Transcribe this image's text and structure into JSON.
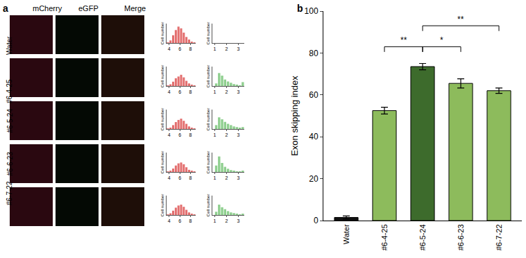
{
  "panel_a": {
    "label": "a",
    "columns": [
      "mCherry",
      "eGFP",
      "Merge"
    ],
    "rows": [
      "Water",
      "#6-4-25",
      "#6-5-24",
      "#6-6-23",
      "#6-7-22"
    ],
    "histograms": [
      {
        "row": "Water",
        "channel": "mCherry",
        "color": "#e36f6f",
        "ylabel": "Cell number",
        "bins": [
          3.5,
          4,
          4.5,
          5,
          5.5,
          6,
          6.5,
          7,
          7.5,
          8,
          8.5,
          9
        ],
        "counts": [
          1,
          6,
          18,
          30,
          38,
          34,
          24,
          14,
          8,
          3,
          1
        ],
        "xlim": [
          3.5,
          9
        ],
        "xticks": [
          4,
          6,
          8
        ],
        "ylim": [
          0,
          45
        ],
        "tick_labels": "x"
      },
      {
        "row": "Water",
        "channel": "eGFP",
        "color": "#8fcf8f",
        "ylabel": "Cell number",
        "bins": [
          1,
          1.25,
          1.5,
          1.75,
          2,
          2.25,
          2.5,
          2.75,
          3,
          3.25,
          3.5
        ],
        "counts": [
          0,
          0,
          0,
          0,
          0,
          0,
          0,
          0,
          0,
          0
        ],
        "xlim": [
          0.8,
          3.5
        ],
        "xticks": [
          1,
          2,
          3
        ],
        "ylim": [
          0,
          30
        ],
        "tick_labels": "x"
      },
      {
        "row": "#6-4-25",
        "channel": "mCherry",
        "color": "#e36f6f",
        "ylabel": "Cell number",
        "bins": [
          3.5,
          4,
          4.5,
          5,
          5.5,
          6,
          6.5,
          7,
          7.5,
          8,
          8.5,
          9
        ],
        "counts": [
          1,
          4,
          10,
          18,
          22,
          26,
          20,
          12,
          6,
          3,
          1
        ],
        "xlim": [
          3.5,
          9
        ],
        "xticks": [
          4,
          6,
          8
        ],
        "ylim": [
          0,
          45
        ],
        "tick_labels": "x"
      },
      {
        "row": "#6-4-25",
        "channel": "eGFP",
        "color": "#8fcf8f",
        "ylabel": "Cell number",
        "bins": [
          1,
          1.25,
          1.5,
          1.75,
          2,
          2.25,
          2.5,
          2.75,
          3,
          3.25,
          3.5
        ],
        "counts": [
          4,
          20,
          16,
          10,
          7,
          5,
          3,
          2,
          1,
          6
        ],
        "xlim": [
          0.8,
          3.5
        ],
        "xticks": [
          1,
          2,
          3
        ],
        "ylim": [
          0,
          30
        ],
        "tick_labels": "x"
      },
      {
        "row": "#6-5-24",
        "channel": "mCherry",
        "color": "#e36f6f",
        "ylabel": "Cell number",
        "bins": [
          3.5,
          4,
          4.5,
          5,
          5.5,
          6,
          6.5,
          7,
          7.5,
          8,
          8.5,
          9
        ],
        "counts": [
          1,
          3,
          9,
          16,
          21,
          24,
          19,
          12,
          6,
          2,
          1
        ],
        "xlim": [
          3.5,
          9
        ],
        "xticks": [
          4,
          6,
          8
        ],
        "ylim": [
          0,
          45
        ],
        "tick_labels": "x"
      },
      {
        "row": "#6-5-24",
        "channel": "eGFP",
        "color": "#8fcf8f",
        "ylabel": "Cell number",
        "bins": [
          1,
          1.25,
          1.5,
          1.75,
          2,
          2.25,
          2.5,
          2.75,
          3,
          3.25,
          3.5
        ],
        "counts": [
          6,
          18,
          15,
          11,
          8,
          6,
          4,
          3,
          2,
          3
        ],
        "xlim": [
          0.8,
          3.5
        ],
        "xticks": [
          1,
          2,
          3
        ],
        "ylim": [
          0,
          30
        ],
        "tick_labels": "x"
      },
      {
        "row": "#6-6-23",
        "channel": "mCherry",
        "color": "#e36f6f",
        "ylabel": "Cell number",
        "bins": [
          3.5,
          4,
          4.5,
          5,
          5.5,
          6,
          6.5,
          7,
          7.5,
          8,
          8.5,
          9
        ],
        "counts": [
          1,
          3,
          8,
          15,
          20,
          22,
          18,
          11,
          5,
          2,
          1
        ],
        "xlim": [
          3.5,
          9
        ],
        "xticks": [
          4,
          6,
          8
        ],
        "ylim": [
          0,
          45
        ],
        "tick_labels": "x"
      },
      {
        "row": "#6-6-23",
        "channel": "eGFP",
        "color": "#8fcf8f",
        "ylabel": "Cell number",
        "bins": [
          1,
          1.25,
          1.5,
          1.75,
          2,
          2.25,
          2.5,
          2.75,
          3,
          3.25,
          3.5
        ],
        "counts": [
          10,
          24,
          14,
          8,
          5,
          3,
          2,
          1,
          1,
          2
        ],
        "xlim": [
          0.8,
          3.5
        ],
        "xticks": [
          1,
          2,
          3
        ],
        "ylim": [
          0,
          30
        ],
        "tick_labels": "x"
      },
      {
        "row": "#6-7-22",
        "channel": "mCherry",
        "color": "#e36f6f",
        "ylabel": "Cell number",
        "bins": [
          3.5,
          4,
          4.5,
          5,
          5.5,
          6,
          6.5,
          7,
          7.5,
          8,
          8.5,
          9
        ],
        "counts": [
          1,
          4,
          10,
          17,
          22,
          24,
          19,
          12,
          6,
          3,
          1
        ],
        "xlim": [
          3.5,
          9
        ],
        "xticks": [
          4,
          6,
          8
        ],
        "ylim": [
          0,
          45
        ],
        "tick_labels": "x"
      },
      {
        "row": "#6-7-22",
        "channel": "eGFP",
        "color": "#8fcf8f",
        "ylabel": "Cell number",
        "bins": [
          1,
          1.25,
          1.5,
          1.75,
          2,
          2.25,
          2.5,
          2.75,
          3,
          3.25,
          3.5
        ],
        "counts": [
          5,
          16,
          12,
          9,
          6,
          4,
          3,
          2,
          1,
          2
        ],
        "xlim": [
          0.8,
          3.5
        ],
        "xticks": [
          1,
          2,
          3
        ],
        "ylim": [
          0,
          30
        ],
        "tick_labels": "x"
      }
    ]
  },
  "chart_data": {
    "type": "bar",
    "label": "b",
    "categories": [
      "Water",
      "#6-4-25",
      "#6-5-24",
      "#6-6-23",
      "#6-7-22"
    ],
    "values": [
      1.5,
      52.5,
      73.5,
      65.5,
      62
    ],
    "errors": [
      0.7,
      1.6,
      1.5,
      2.2,
      1.3
    ],
    "colors": [
      "#111111",
      "#8dbb5c",
      "#3d6b2c",
      "#8dbb5c",
      "#8dbb5c"
    ],
    "ylabel": "Exon skipping index",
    "ylim": [
      0,
      100
    ],
    "yticks": [
      0,
      20,
      40,
      60,
      80,
      100
    ],
    "grid": false,
    "significance": [
      {
        "from": 1,
        "to": 2,
        "y": 83,
        "label": "**"
      },
      {
        "from": 2,
        "to": 3,
        "y": 83,
        "label": "*"
      },
      {
        "from": 2,
        "to": 4,
        "y": 93,
        "label": "**"
      }
    ]
  }
}
